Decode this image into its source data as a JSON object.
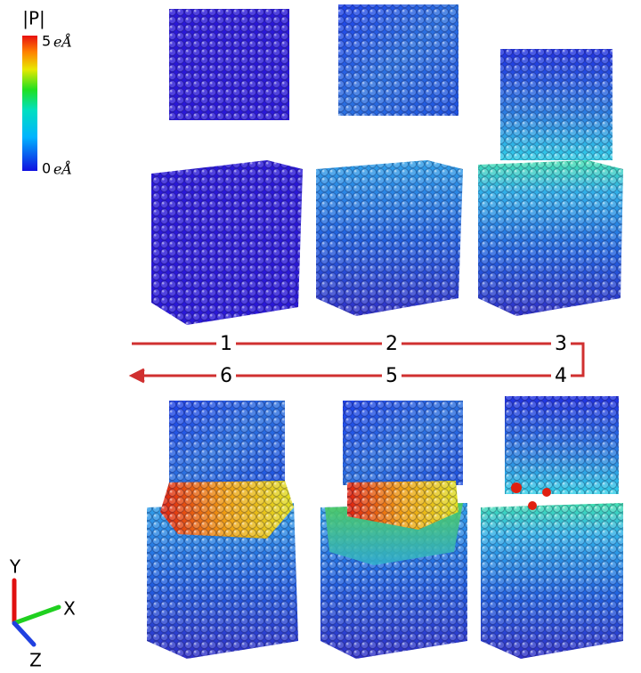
{
  "colorbar": {
    "title": "|P|",
    "max_label": "5",
    "min_label": "0",
    "unit": "eÅ"
  },
  "steps": {
    "labels": [
      "1",
      "2",
      "3",
      "4",
      "5",
      "6"
    ]
  },
  "axes": {
    "y": "Y",
    "x": "X",
    "z": "Z"
  }
}
